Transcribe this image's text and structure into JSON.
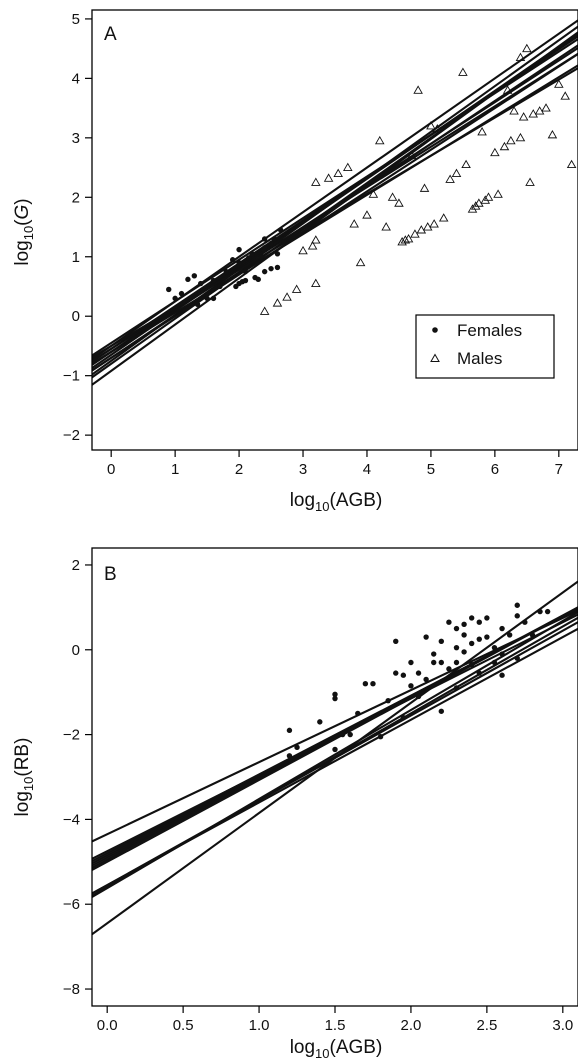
{
  "chart_data": [
    {
      "type": "scatter",
      "panel_label": "A",
      "title": "",
      "xlabel": "log10(AGB)",
      "ylabel": "log10(G)",
      "xlim": [
        -0.3,
        7.3
      ],
      "ylim": [
        -2.25,
        5.15
      ],
      "xticks": [
        "0",
        "1",
        "2",
        "3",
        "4",
        "5",
        "6",
        "7"
      ],
      "yticks": [
        "−2",
        "−1",
        "0",
        "1",
        "2",
        "3",
        "4",
        "5"
      ],
      "legend": {
        "position": "bottom-right",
        "entries": [
          "Females",
          "Males"
        ]
      },
      "series": [
        {
          "name": "Females",
          "marker": "filled-circle",
          "points": [
            [
              0.9,
              0.45
            ],
            [
              1.0,
              0.3
            ],
            [
              1.1,
              0.38
            ],
            [
              1.2,
              0.62
            ],
            [
              1.3,
              0.68
            ],
            [
              1.35,
              0.2
            ],
            [
              1.4,
              0.55
            ],
            [
              1.5,
              0.3
            ],
            [
              1.6,
              0.6
            ],
            [
              1.7,
              0.5
            ],
            [
              1.8,
              0.75
            ],
            [
              1.9,
              0.95
            ],
            [
              1.95,
              0.5
            ],
            [
              2.0,
              1.12
            ],
            [
              2.0,
              0.55
            ],
            [
              2.05,
              0.58
            ],
            [
              2.1,
              0.6
            ],
            [
              2.15,
              0.98
            ],
            [
              2.2,
              1.05
            ],
            [
              2.25,
              0.65
            ],
            [
              2.3,
              0.62
            ],
            [
              2.35,
              1.0
            ],
            [
              2.4,
              0.75
            ],
            [
              2.4,
              1.15
            ],
            [
              2.5,
              1.22
            ],
            [
              2.5,
              0.8
            ],
            [
              2.55,
              1.3
            ],
            [
              2.6,
              0.82
            ],
            [
              2.6,
              1.05
            ],
            [
              2.65,
              1.45
            ],
            [
              2.7,
              1.25
            ],
            [
              2.4,
              1.3
            ],
            [
              1.6,
              0.3
            ],
            [
              2.0,
              0.9
            ],
            [
              2.1,
              0.75
            ]
          ]
        },
        {
          "name": "Males",
          "marker": "open-triangle",
          "points": [
            [
              2.4,
              0.08
            ],
            [
              2.6,
              0.22
            ],
            [
              2.75,
              0.32
            ],
            [
              2.9,
              0.45
            ],
            [
              3.2,
              0.55
            ],
            [
              3.0,
              1.1
            ],
            [
              3.15,
              1.18
            ],
            [
              3.2,
              1.28
            ],
            [
              3.2,
              2.25
            ],
            [
              3.4,
              2.32
            ],
            [
              3.55,
              2.4
            ],
            [
              3.7,
              2.5
            ],
            [
              3.8,
              1.55
            ],
            [
              3.9,
              0.9
            ],
            [
              4.0,
              1.7
            ],
            [
              4.1,
              2.05
            ],
            [
              4.2,
              2.95
            ],
            [
              4.3,
              1.5
            ],
            [
              4.4,
              2.0
            ],
            [
              4.5,
              1.9
            ],
            [
              4.55,
              1.25
            ],
            [
              4.6,
              1.28
            ],
            [
              4.65,
              1.3
            ],
            [
              4.75,
              1.38
            ],
            [
              4.85,
              1.45
            ],
            [
              4.9,
              2.15
            ],
            [
              4.95,
              1.5
            ],
            [
              5.05,
              1.55
            ],
            [
              5.1,
              3.15
            ],
            [
              5.2,
              1.65
            ],
            [
              4.8,
              3.8
            ],
            [
              5.5,
              4.1
            ],
            [
              5.4,
              2.4
            ],
            [
              5.55,
              2.55
            ],
            [
              5.65,
              1.8
            ],
            [
              5.7,
              1.85
            ],
            [
              5.75,
              1.9
            ],
            [
              5.85,
              1.95
            ],
            [
              5.9,
              2.0
            ],
            [
              6.0,
              2.75
            ],
            [
              6.05,
              2.05
            ],
            [
              6.15,
              2.85
            ],
            [
              6.25,
              2.95
            ],
            [
              6.3,
              3.45
            ],
            [
              6.4,
              3.0
            ],
            [
              6.45,
              3.35
            ],
            [
              6.5,
              4.5
            ],
            [
              6.55,
              2.25
            ],
            [
              6.6,
              3.4
            ],
            [
              6.7,
              3.45
            ],
            [
              6.8,
              3.5
            ],
            [
              6.9,
              3.05
            ],
            [
              7.0,
              3.9
            ],
            [
              7.1,
              3.7
            ],
            [
              7.2,
              2.55
            ],
            [
              4.7,
              2.7
            ],
            [
              5.0,
              3.2
            ],
            [
              5.3,
              2.3
            ],
            [
              5.8,
              3.1
            ],
            [
              6.2,
              3.8
            ],
            [
              6.4,
              4.35
            ]
          ]
        }
      ],
      "fit_lines": [
        {
          "intercept": -0.55,
          "slope": 0.72
        },
        {
          "intercept": -0.6,
          "slope": 0.73
        },
        {
          "intercept": -0.5,
          "slope": 0.75
        },
        {
          "intercept": -0.6,
          "slope": 0.7
        },
        {
          "intercept": -0.7,
          "slope": 0.72
        },
        {
          "intercept": -0.65,
          "slope": 0.74
        },
        {
          "intercept": -0.55,
          "slope": 0.68
        },
        {
          "intercept": -0.75,
          "slope": 0.77
        },
        {
          "intercept": -0.8,
          "slope": 0.76
        },
        {
          "intercept": -0.92,
          "slope": 0.78
        },
        {
          "intercept": -0.6,
          "slope": 0.66
        },
        {
          "intercept": -0.7,
          "slope": 0.7
        },
        {
          "intercept": -0.5,
          "slope": 0.64
        },
        {
          "intercept": -0.45,
          "slope": 0.7
        }
      ]
    },
    {
      "type": "scatter",
      "panel_label": "B",
      "title": "",
      "xlabel": "log10(AGB)",
      "ylabel": "log10(RB)",
      "xlim": [
        -0.1,
        3.1
      ],
      "ylim": [
        -8.4,
        2.4
      ],
      "xticks": [
        "0.0",
        "0.5",
        "1.0",
        "1.5",
        "2.0",
        "2.5",
        "3.0"
      ],
      "yticks": [
        "−8",
        "−6",
        "−4",
        "−2",
        "0",
        "2"
      ],
      "series": [
        {
          "name": "",
          "marker": "filled-circle",
          "points": [
            [
              1.2,
              -1.9
            ],
            [
              1.2,
              -2.5
            ],
            [
              1.25,
              -2.3
            ],
            [
              1.4,
              -1.7
            ],
            [
              1.5,
              -1.15
            ],
            [
              1.5,
              -1.05
            ],
            [
              1.55,
              -2.0
            ],
            [
              1.6,
              -2.0
            ],
            [
              1.65,
              -1.5
            ],
            [
              1.7,
              -0.8
            ],
            [
              1.75,
              -0.8
            ],
            [
              1.8,
              -2.05
            ],
            [
              1.85,
              -1.2
            ],
            [
              1.9,
              0.2
            ],
            [
              1.9,
              -0.55
            ],
            [
              1.95,
              -0.6
            ],
            [
              1.95,
              -1.6
            ],
            [
              2.0,
              -0.3
            ],
            [
              2.0,
              -0.85
            ],
            [
              2.05,
              -0.55
            ],
            [
              2.05,
              -1.1
            ],
            [
              2.1,
              0.3
            ],
            [
              2.1,
              -0.7
            ],
            [
              2.15,
              -0.3
            ],
            [
              2.2,
              0.2
            ],
            [
              2.2,
              -0.3
            ],
            [
              2.25,
              -0.45
            ],
            [
              2.25,
              0.65
            ],
            [
              2.3,
              0.5
            ],
            [
              2.3,
              0.05
            ],
            [
              2.3,
              -0.9
            ],
            [
              2.35,
              0.6
            ],
            [
              2.35,
              0.35
            ],
            [
              2.35,
              -0.05
            ],
            [
              2.4,
              0.75
            ],
            [
              2.4,
              0.15
            ],
            [
              2.4,
              -0.35
            ],
            [
              2.45,
              0.65
            ],
            [
              2.45,
              0.25
            ],
            [
              2.45,
              -0.55
            ],
            [
              2.5,
              0.75
            ],
            [
              2.5,
              0.3
            ],
            [
              2.55,
              0.05
            ],
            [
              2.55,
              -0.3
            ],
            [
              2.6,
              0.5
            ],
            [
              2.6,
              -0.1
            ],
            [
              2.65,
              0.35
            ],
            [
              2.7,
              1.05
            ],
            [
              2.7,
              0.8
            ],
            [
              2.75,
              0.65
            ],
            [
              2.8,
              0.35
            ],
            [
              2.85,
              0.9
            ],
            [
              2.9,
              0.9
            ],
            [
              2.15,
              -0.1
            ],
            [
              2.3,
              -0.3
            ],
            [
              2.6,
              -0.6
            ],
            [
              2.7,
              -0.2
            ],
            [
              2.2,
              -1.45
            ],
            [
              1.5,
              -2.35
            ]
          ]
        }
      ],
      "fit_lines": [
        {
          "intercept": -4.35,
          "slope": 1.7
        },
        {
          "intercept": -4.8,
          "slope": 1.86
        },
        {
          "intercept": -4.85,
          "slope": 1.88
        },
        {
          "intercept": -4.9,
          "slope": 1.9
        },
        {
          "intercept": -4.95,
          "slope": 1.92
        },
        {
          "intercept": -5.0,
          "slope": 1.93
        },
        {
          "intercept": -4.75,
          "slope": 1.8
        },
        {
          "intercept": -5.55,
          "slope": 2.0
        },
        {
          "intercept": -5.6,
          "slope": 2.05
        },
        {
          "intercept": -5.62,
          "slope": 2.1
        },
        {
          "intercept": -5.55,
          "slope": 1.95
        },
        {
          "intercept": -6.45,
          "slope": 2.6
        }
      ]
    }
  ]
}
